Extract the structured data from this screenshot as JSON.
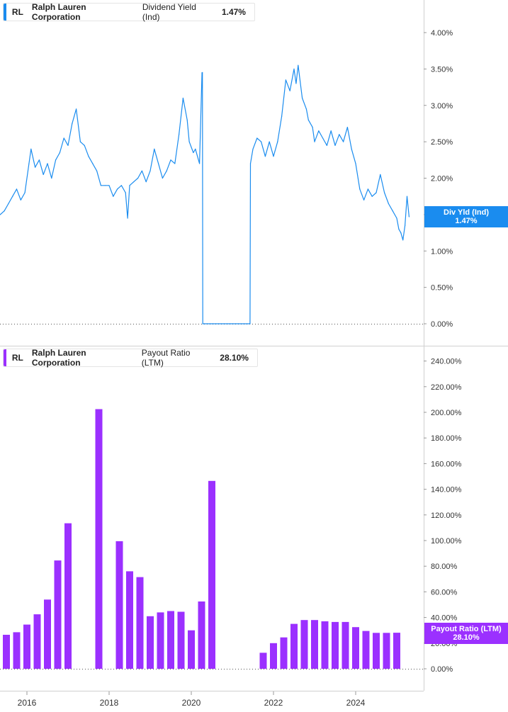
{
  "legend_top": {
    "ticker": "RL",
    "company": "Ralph Lauren Corporation",
    "metric": "Dividend Yield (Ind)",
    "value": "1.47%",
    "color": "#1a8cef"
  },
  "legend_bottom": {
    "ticker": "RL",
    "company": "Ralph Lauren Corporation",
    "metric": "Payout Ratio (LTM)",
    "value": "28.10%",
    "color": "#9b30ff"
  },
  "flag_top": {
    "label": "Div Yld (Ind)",
    "value": "1.47%",
    "color": "#1a8cef"
  },
  "flag_bottom": {
    "label": "Payout Ratio (LTM)",
    "value": "28.10%",
    "color": "#9b30ff"
  },
  "chart_data": [
    {
      "type": "line",
      "series": [
        {
          "name": "Dividend Yield (Ind)",
          "color": "#1a8cef",
          "x": [
            2015.35,
            2015.45,
            2015.55,
            2015.65,
            2015.75,
            2015.85,
            2015.95,
            2016.05,
            2016.1,
            2016.2,
            2016.3,
            2016.4,
            2016.5,
            2016.6,
            2016.7,
            2016.8,
            2016.9,
            2017.0,
            2017.1,
            2017.2,
            2017.3,
            2017.4,
            2017.5,
            2017.6,
            2017.7,
            2017.8,
            2017.9,
            2018.0,
            2018.1,
            2018.2,
            2018.3,
            2018.4,
            2018.45,
            2018.5,
            2018.6,
            2018.7,
            2018.8,
            2018.9,
            2019.0,
            2019.1,
            2019.2,
            2019.3,
            2019.4,
            2019.5,
            2019.6,
            2019.7,
            2019.8,
            2019.9,
            2019.95,
            2020.05,
            2020.1,
            2020.2,
            2020.26,
            2020.27,
            2020.28,
            2021.43,
            2021.44,
            2021.5,
            2021.6,
            2021.7,
            2021.8,
            2021.9,
            2022.0,
            2022.1,
            2022.2,
            2022.3,
            2022.4,
            2022.5,
            2022.55,
            2022.6,
            2022.7,
            2022.8,
            2022.85,
            2022.95,
            2023.0,
            2023.1,
            2023.2,
            2023.3,
            2023.4,
            2023.5,
            2023.6,
            2023.7,
            2023.8,
            2023.9,
            2024.0,
            2024.1,
            2024.2,
            2024.3,
            2024.4,
            2024.5,
            2024.6,
            2024.7,
            2024.8,
            2024.9,
            2025.0,
            2025.05,
            2025.1,
            2025.15,
            2025.2,
            2025.25,
            2025.3
          ],
          "values": [
            1.5,
            1.55,
            1.65,
            1.75,
            1.85,
            1.7,
            1.8,
            2.2,
            2.4,
            2.15,
            2.25,
            2.05,
            2.2,
            2.0,
            2.25,
            2.35,
            2.55,
            2.45,
            2.75,
            2.95,
            2.5,
            2.45,
            2.3,
            2.2,
            2.1,
            1.9,
            1.9,
            1.9,
            1.75,
            1.85,
            1.9,
            1.8,
            1.45,
            1.9,
            1.95,
            2.0,
            2.1,
            1.95,
            2.1,
            2.4,
            2.2,
            2.0,
            2.1,
            2.25,
            2.2,
            2.6,
            3.1,
            2.8,
            2.5,
            2.35,
            2.4,
            2.2,
            3.45,
            3.45,
            0.0,
            0.0,
            2.2,
            2.4,
            2.55,
            2.5,
            2.3,
            2.5,
            2.3,
            2.5,
            2.85,
            3.35,
            3.2,
            3.5,
            3.3,
            3.55,
            3.1,
            2.95,
            2.8,
            2.7,
            2.5,
            2.65,
            2.55,
            2.45,
            2.65,
            2.45,
            2.6,
            2.5,
            2.7,
            2.4,
            2.2,
            1.85,
            1.7,
            1.85,
            1.75,
            1.8,
            2.05,
            1.8,
            1.65,
            1.55,
            1.45,
            1.3,
            1.25,
            1.15,
            1.35,
            1.75,
            1.47
          ]
        }
      ],
      "ylim": [
        0,
        4.2
      ],
      "yticks": [
        "0.00%",
        "0.50%",
        "1.00%",
        "1.50%",
        "2.00%",
        "2.50%",
        "3.00%",
        "3.50%",
        "4.00%"
      ]
    },
    {
      "type": "bar",
      "series": [
        {
          "name": "Payout Ratio (LTM)",
          "color": "#9b30ff",
          "x": [
            2015.5,
            2015.75,
            2016.0,
            2016.25,
            2016.5,
            2016.75,
            2017.0,
            2017.75,
            2018.25,
            2018.5,
            2018.75,
            2019.0,
            2019.25,
            2019.5,
            2019.75,
            2020.0,
            2020.25,
            2020.5,
            2021.75,
            2022.0,
            2022.25,
            2022.5,
            2022.75,
            2023.0,
            2023.25,
            2023.5,
            2023.75,
            2024.0,
            2024.25,
            2024.5,
            2024.75,
            2025.0
          ],
          "values": [
            26.5,
            28.5,
            34.5,
            42.5,
            54,
            84.5,
            113.5,
            202.5,
            99.5,
            76,
            71.5,
            41,
            44,
            45,
            44.5,
            30,
            52.5,
            146.5,
            12.5,
            20,
            24.5,
            35,
            38,
            38,
            37,
            36.5,
            36.5,
            32.5,
            29.5,
            28,
            28,
            28.1
          ]
        }
      ],
      "ylim": [
        0,
        250
      ],
      "yticks": [
        "0.00%",
        "20.00%",
        "40.00%",
        "60.00%",
        "80.00%",
        "100.00%",
        "120.00%",
        "140.00%",
        "160.00%",
        "180.00%",
        "200.00%",
        "220.00%",
        "240.00%"
      ]
    }
  ],
  "x_axis": {
    "labels": [
      "2016",
      "2018",
      "2020",
      "2022",
      "2024"
    ]
  }
}
